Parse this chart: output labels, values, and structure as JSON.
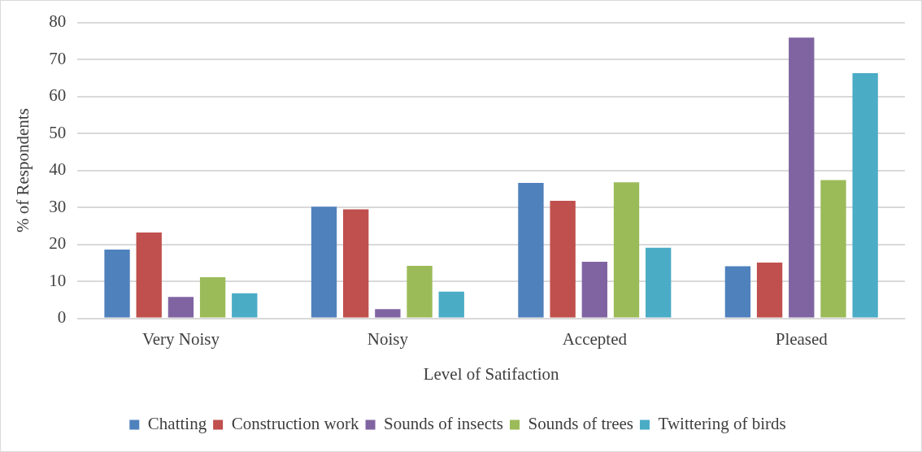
{
  "chart_data": {
    "type": "bar",
    "xlabel": "Level of Satifaction",
    "ylabel": "% of Respondents",
    "categories": [
      "Very Noisy",
      "Noisy",
      "Accepted",
      "Pleased"
    ],
    "series": [
      {
        "name": "Chatting",
        "color": "#4f81bd",
        "values": [
          18.6,
          30.2,
          36.6,
          14.1
        ]
      },
      {
        "name": "Construction work",
        "color": "#c0504d",
        "values": [
          23.2,
          29.5,
          31.8,
          15.1
        ]
      },
      {
        "name": "Sounds of insects",
        "color": "#8064a2",
        "values": [
          5.8,
          2.5,
          15.3,
          75.9
        ]
      },
      {
        "name": "Sounds of trees",
        "color": "#9bbb59",
        "values": [
          11.1,
          14.2,
          36.8,
          37.4
        ]
      },
      {
        "name": "Twittering of birds",
        "color": "#4bacc6",
        "values": [
          6.8,
          7.2,
          19.1,
          66.3
        ]
      }
    ],
    "ylim": [
      0,
      80
    ],
    "yticks": [
      0,
      10,
      20,
      30,
      40,
      50,
      60,
      70,
      80
    ],
    "grid": "y",
    "legend": "bottom"
  }
}
